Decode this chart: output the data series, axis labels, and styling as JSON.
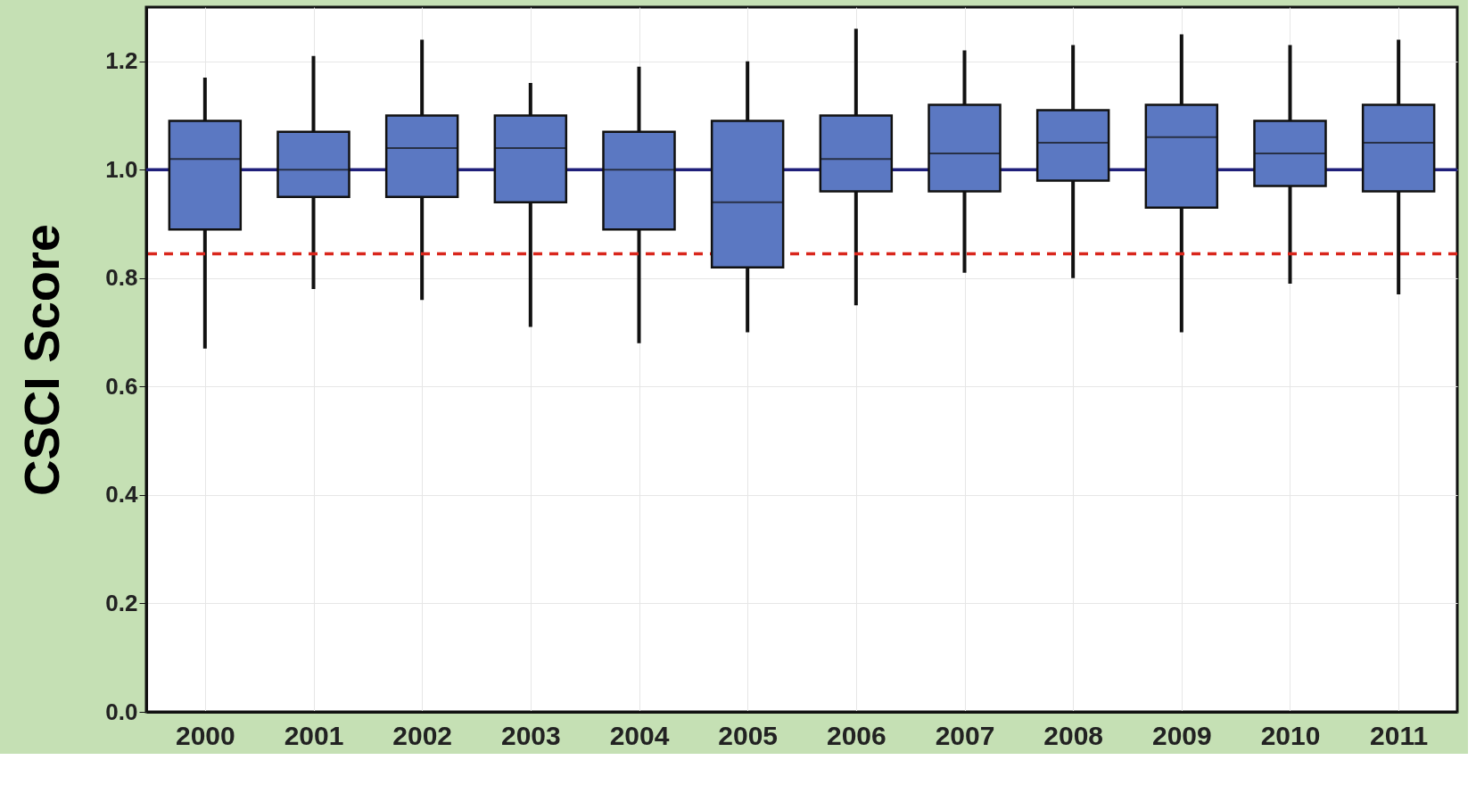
{
  "chart_data": {
    "type": "box",
    "ylabel": "CSCI Score",
    "categories": [
      "2000",
      "2001",
      "2002",
      "2003",
      "2004",
      "2005",
      "2006",
      "2007",
      "2008",
      "2009",
      "2010",
      "2011"
    ],
    "color": "#5b78c2",
    "boxes": [
      {
        "low": 0.67,
        "q1": 0.89,
        "median": 1.02,
        "q3": 1.09,
        "high": 1.17
      },
      {
        "low": 0.78,
        "q1": 0.95,
        "median": 1.0,
        "q3": 1.07,
        "high": 1.21
      },
      {
        "low": 0.76,
        "q1": 0.95,
        "median": 1.04,
        "q3": 1.1,
        "high": 1.24
      },
      {
        "low": 0.71,
        "q1": 0.94,
        "median": 1.04,
        "q3": 1.1,
        "high": 1.16
      },
      {
        "low": 0.68,
        "q1": 0.89,
        "median": 1.0,
        "q3": 1.07,
        "high": 1.19
      },
      {
        "low": 0.7,
        "q1": 0.82,
        "median": 0.94,
        "q3": 1.09,
        "high": 1.2
      },
      {
        "low": 0.75,
        "q1": 0.96,
        "median": 1.02,
        "q3": 1.1,
        "high": 1.26
      },
      {
        "low": 0.81,
        "q1": 0.96,
        "median": 1.03,
        "q3": 1.12,
        "high": 1.22
      },
      {
        "low": 0.8,
        "q1": 0.98,
        "median": 1.05,
        "q3": 1.11,
        "high": 1.23
      },
      {
        "low": 0.7,
        "q1": 0.93,
        "median": 1.06,
        "q3": 1.12,
        "high": 1.25
      },
      {
        "low": 0.79,
        "q1": 0.97,
        "median": 1.03,
        "q3": 1.09,
        "high": 1.23
      },
      {
        "low": 0.77,
        "q1": 0.96,
        "median": 1.05,
        "q3": 1.12,
        "high": 1.24
      }
    ],
    "ylim": [
      0,
      1.3
    ],
    "yticks": [
      {
        "value": 0,
        "label": "0.0"
      },
      {
        "value": 0.2,
        "label": "0.2"
      },
      {
        "value": 0.4,
        "label": "0.4"
      },
      {
        "value": 0.6,
        "label": "0.6"
      },
      {
        "value": 0.8,
        "label": "0.8"
      },
      {
        "value": 1.0,
        "label": "1.0"
      },
      {
        "value": 1.2,
        "label": "1.2"
      }
    ],
    "ref_lines": [
      {
        "axis": "y",
        "value": 1.0,
        "color": "#1f1f7a",
        "line_style": "solid"
      },
      {
        "axis": "y",
        "value": 0.845,
        "color": "#d9261c",
        "line_style": "dashed"
      }
    ],
    "grid": true
  }
}
